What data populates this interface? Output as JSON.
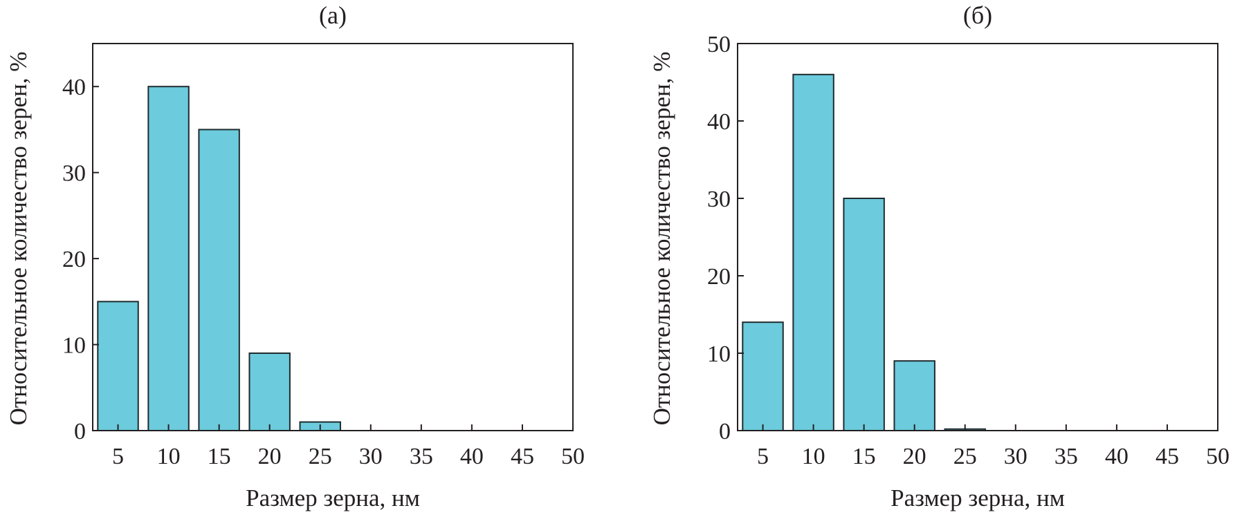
{
  "chart_data": [
    {
      "type": "bar",
      "title": "(а)",
      "xlabel": "Размер зерна, нм",
      "ylabel": "Относительное количество зерен, %",
      "categories": [
        5,
        10,
        15,
        20,
        25
      ],
      "values": [
        15,
        40,
        35,
        9,
        1
      ],
      "xticks": [
        5,
        10,
        15,
        20,
        25,
        30,
        35,
        40,
        45,
        50
      ],
      "yticks": [
        0,
        10,
        20,
        30,
        40
      ],
      "xlim": [
        2.5,
        50
      ],
      "ylim": [
        0,
        45
      ],
      "grid": false,
      "bar_color": "#6ccbdc"
    },
    {
      "type": "bar",
      "title": "(б)",
      "xlabel": "Размер зерна, нм",
      "ylabel": "Относительное количество зерен, %",
      "categories": [
        5,
        10,
        15,
        20,
        25
      ],
      "values": [
        14,
        46,
        30,
        9,
        0.2
      ],
      "xticks": [
        5,
        10,
        15,
        20,
        25,
        30,
        35,
        40,
        45,
        50
      ],
      "yticks": [
        0,
        10,
        20,
        30,
        40,
        50
      ],
      "xlim": [
        2.5,
        50
      ],
      "ylim": [
        0,
        50
      ],
      "grid": false,
      "bar_color": "#6ccbdc"
    }
  ]
}
